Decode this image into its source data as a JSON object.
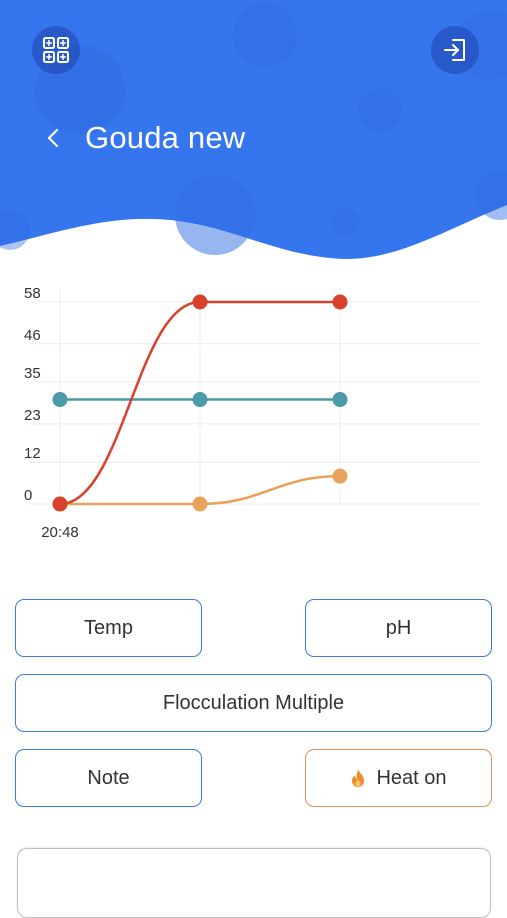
{
  "header": {
    "title": "Gouda new",
    "color": "#3576ee"
  },
  "chart_data": {
    "type": "line",
    "x": [
      "20:48",
      "",
      ""
    ],
    "x_tick_labels": [
      "20:48"
    ],
    "y_ticks": [
      "0",
      "12",
      "23",
      "35",
      "46",
      "58"
    ],
    "ylim": [
      0,
      58
    ],
    "grid": true,
    "series": [
      {
        "color": "#d9412a",
        "values": [
          0,
          58,
          58
        ]
      },
      {
        "color": "#4a9aa8",
        "values": [
          30,
          30,
          30
        ]
      },
      {
        "color": "#e8a25c",
        "values": [
          0,
          0,
          8
        ]
      }
    ]
  },
  "buttons": {
    "temp": "Temp",
    "ph": "pH",
    "flocculation": "Flocculation Multiple",
    "note": "Note",
    "heat": "Heat on"
  },
  "icons": {
    "top_left": "grid-icon",
    "top_right": "logout-icon",
    "back": "chevron-left-icon",
    "heat": "flame-icon"
  }
}
